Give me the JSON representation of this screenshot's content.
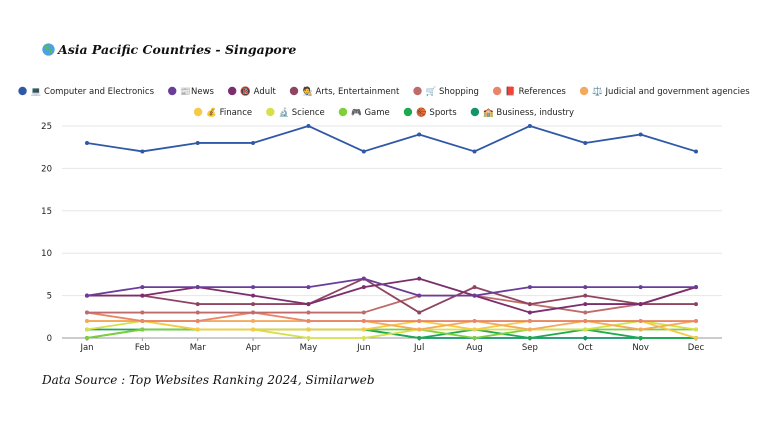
{
  "header": {
    "globe_icon": "globe-asia-icon",
    "title": "Asia Pacific Countries - Singapore"
  },
  "footer": {
    "source": "Data Source : Top Websites Ranking 2024, Similarweb"
  },
  "chart_data": {
    "type": "line",
    "title": "Asia Pacific Countries - Singapore",
    "xlabel": "",
    "ylabel": "",
    "ylim": [
      0,
      25
    ],
    "yticks": [
      0,
      5,
      10,
      15,
      20,
      25
    ],
    "grid": true,
    "legend": "top",
    "categories": [
      "Jan",
      "Feb",
      "Mar",
      "Apr",
      "May",
      "Jun",
      "Jul",
      "Aug",
      "Sep",
      "Oct",
      "Nov",
      "Dec"
    ],
    "series": [
      {
        "name": "💻 Computer and Electronics",
        "color": "#2f58a6",
        "values": [
          23,
          22,
          23,
          23,
          25,
          22,
          24,
          22,
          25,
          23,
          24,
          22
        ]
      },
      {
        "name": "📰News",
        "color": "#6a3d9a",
        "values": [
          5,
          6,
          6,
          6,
          6,
          7,
          5,
          5,
          6,
          6,
          6,
          6
        ]
      },
      {
        "name": "🔞 Adult",
        "color": "#7b2d6e",
        "values": [
          5,
          5,
          6,
          5,
          4,
          6,
          7,
          5,
          3,
          4,
          4,
          6
        ]
      },
      {
        "name": "🧑‍🎨 Arts, Entertainment",
        "color": "#8f4562",
        "values": [
          5,
          5,
          4,
          4,
          4,
          7,
          3,
          6,
          4,
          5,
          4,
          4
        ]
      },
      {
        "name": "🛒 Shopping",
        "color": "#c06b6b",
        "values": [
          3,
          3,
          3,
          3,
          3,
          3,
          5,
          5,
          4,
          3,
          4,
          6
        ]
      },
      {
        "name": "📕 References",
        "color": "#e8866a",
        "values": [
          3,
          2,
          2,
          3,
          2,
          2,
          2,
          2,
          2,
          2,
          2,
          2
        ]
      },
      {
        "name": "⚖️ Judicial and government agencies",
        "color": "#f5a95c",
        "values": [
          2,
          2,
          2,
          2,
          2,
          2,
          1,
          2,
          1,
          2,
          1,
          2
        ]
      },
      {
        "name": "💰 Finance",
        "color": "#f7c948",
        "values": [
          2,
          2,
          1,
          1,
          1,
          1,
          2,
          1,
          2,
          2,
          2,
          0
        ]
      },
      {
        "name": "🔬 Science",
        "color": "#d6e04a",
        "values": [
          1,
          2,
          1,
          1,
          0,
          0,
          1,
          1,
          1,
          1,
          2,
          1
        ]
      },
      {
        "name": "🎮 Game",
        "color": "#7fcf3a",
        "values": [
          0,
          1,
          1,
          1,
          1,
          1,
          1,
          0,
          1,
          1,
          1,
          1
        ]
      },
      {
        "name": "🏀 Sports",
        "color": "#1fa84f",
        "values": [
          1,
          1,
          1,
          1,
          1,
          1,
          0,
          1,
          0,
          1,
          0,
          0
        ]
      },
      {
        "name": "🏫 Business, industry",
        "color": "#14946a",
        "values": [
          0,
          1,
          1,
          1,
          1,
          1,
          0,
          0,
          0,
          0,
          0,
          0
        ]
      }
    ]
  }
}
